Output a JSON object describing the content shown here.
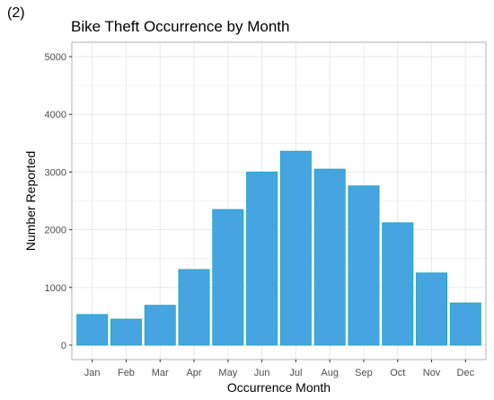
{
  "panel_label": "(2)",
  "chart_data": {
    "type": "bar",
    "title": "Bike Theft Occurrence by Month",
    "xlabel": "Occurrence Month",
    "ylabel": "Number Reported",
    "categories": [
      "Jan",
      "Feb",
      "Mar",
      "Apr",
      "May",
      "Jun",
      "Jul",
      "Aug",
      "Sep",
      "Oct",
      "Nov",
      "Dec"
    ],
    "values": [
      530,
      450,
      690,
      1310,
      2350,
      3000,
      3360,
      3050,
      2760,
      2120,
      1250,
      730
    ],
    "ylim": [
      -250,
      5250
    ],
    "yticks": [
      0,
      1000,
      2000,
      3000,
      4000,
      5000
    ],
    "grid": true,
    "bar_color": "#46a5e1",
    "bar_edge_color": "#21a9c8",
    "grid_color": "#ebebeb"
  }
}
